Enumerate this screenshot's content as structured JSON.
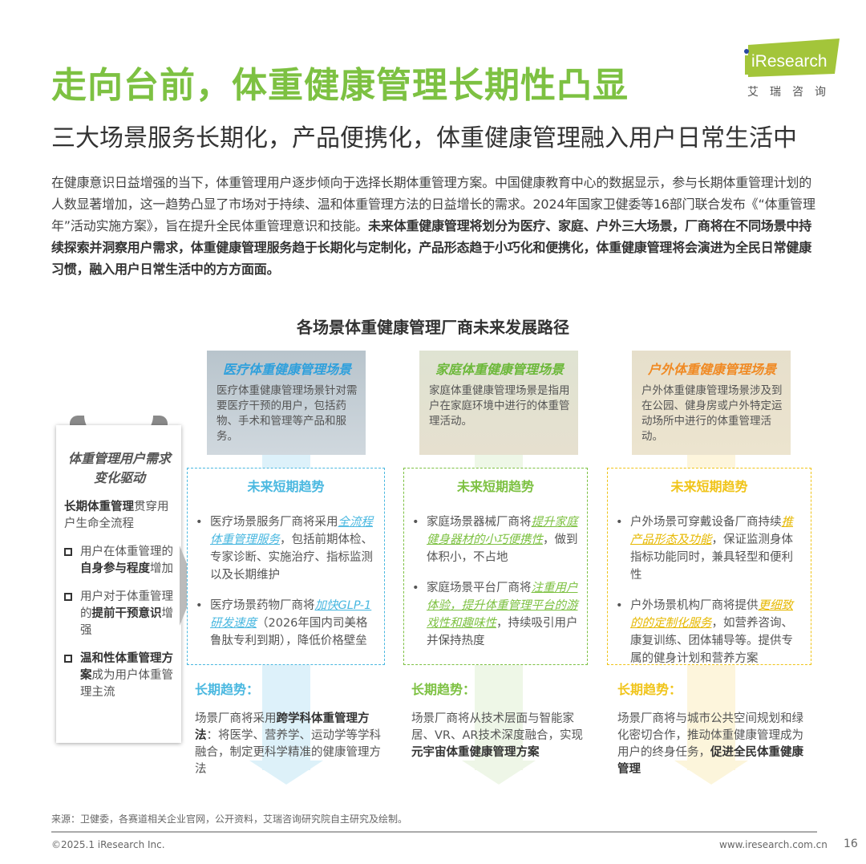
{
  "header": {
    "title": "走向台前，体重健康管理长期性凸显",
    "subtitle": "三大场景服务长期化，产品便携化，体重健康管理融入用户日常生活中",
    "logo_text": "iResearch",
    "logo_sub": "艾瑞咨询"
  },
  "body": {
    "normal": "在健康意识日益增强的当下，体重管理用户逐步倾向于选择长期体重管理方案。中国健康教育中心的数据显示，参与长期体重管理计划的人数显著增加，这一趋势凸显了市场对于持续、温和体重管理方法的日益增长的需求。2024年国家卫健委等16部门联合发布《“体重管理年”活动实施方案》，旨在提升全民体重管理意识和技能。",
    "bold": "未来体重健康管理将划分为医疗、家庭、户外三大场景，厂商将在不同场景中持续探索并洞察用户需求，体重健康管理服务趋于长期化与定制化，产品形态趋于小巧化和便携化，体重健康管理将会演进为全民日常健康习惯，融入用户日常生活中的方方面面。"
  },
  "diagram": {
    "title": "各场景体重健康管理厂商未来发展路径",
    "left": {
      "heading": "体重管理用户需求变化驱动",
      "intro_bold": "长期体重管理",
      "intro": "贯穿用户生命全流程",
      "items": [
        {
          "pre": "用户在体重管理的",
          "bold": "自身参与程度",
          "post": "增加"
        },
        {
          "pre": "用户对于体重管理的",
          "bold": "提前干预意识",
          "post": "增强"
        },
        {
          "pre": "",
          "bold": "温和性体重管理方案",
          "post": "成为用户体重管理主流"
        }
      ]
    },
    "columns": [
      {
        "color": "#4ab8e0",
        "scene_title": "医疗体重健康管理场景",
        "scene_desc": "医疗体重健康管理场景针对需要医疗干预的用户，包括药物、手术和管理等产品和服务。",
        "short_title": "未来短期趋势",
        "bullets": [
          {
            "pre": "医疗场景服务厂商将采用",
            "hl": "全流程体重管理服务",
            "post": "，包括前期体检、专家诊断、实施治疗、指标监测以及长期维护"
          },
          {
            "pre": "医疗场景药物厂商将",
            "hl": "加快GLP-1研发速度",
            "post": "（2026年国内司美格鲁肽专利到期），降低价格壁垒"
          }
        ],
        "long_title": "长期趋势：",
        "long": {
          "pre": "场景厂商将采用",
          "bold": "跨学科体重管理方法",
          "post": "：将医学、营养学、运动学等学科融合，制定更科学精准的健康管理方法"
        }
      },
      {
        "color": "#7dc142",
        "scene_title": "家庭体重健康管理场景",
        "scene_desc": "家庭体重健康管理场景是指用户在家庭环境中进行的体重管理活动。",
        "short_title": "未来短期趋势",
        "bullets": [
          {
            "pre": "家庭场景器械厂商将",
            "hl": "提升家庭健身器材的小巧便携性",
            "post": "，做到体积小，不占地"
          },
          {
            "pre": "家庭场景平台厂商将",
            "hl": "注重用户体验，提升体重管理平台的游戏性和趣味性",
            "post": "，持续吸引用户并保持热度"
          }
        ],
        "long_title": "长期趋势：",
        "long": {
          "pre": "场景厂商将从技术层面与智能家居、VR、AR技术深度融合，实现",
          "bold": "元宇宙体重健康管理方案",
          "post": ""
        }
      },
      {
        "color": "#f0c419",
        "scene_color": "#f08a24",
        "scene_title": "户外体重健康管理场景",
        "scene_desc": "户外体重健康管理场景涉及到在公园、健身房或户外特定运动场所中进行的体重管理活动。",
        "short_title": "未来短期趋势",
        "bullets": [
          {
            "pre": "户外场景可穿戴设备厂商持续",
            "hl": "推产品形态及功能",
            "post": "，保证监测身体指标功能同时，兼具轻型和便利性"
          },
          {
            "pre": "户外场景机构厂商将提供",
            "hl": "更细致的的定制化服务",
            "post": "，如营养咨询、康复训练、团体辅导等。提供专属的健身计划和营养方案"
          }
        ],
        "long_title": "长期趋势：",
        "long": {
          "pre": "场景厂商将与城市公共空间规划和绿化密切合作，推动体重健康管理成为用户的终身任务，",
          "bold": "促进全民体重健康管理",
          "post": ""
        }
      }
    ]
  },
  "footer": {
    "source": "来源：卫健委，各赛道相关企业官网，公开资料，艾瑞咨询研究院自主研究及绘制。",
    "copyright": "©2025.1 iResearch Inc.",
    "website": "www.iresearch.com.cn",
    "page": "16"
  }
}
